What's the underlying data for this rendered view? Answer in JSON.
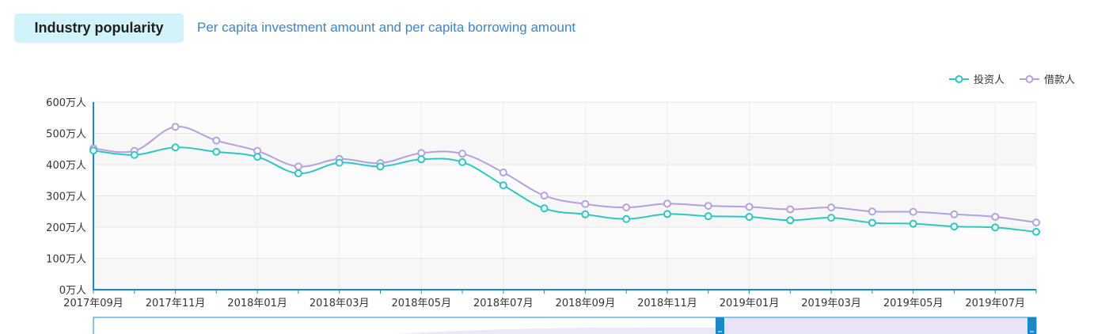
{
  "tabs": {
    "active": "Industry popularity",
    "inactive": "Per capita investment amount and per capita borrowing amount"
  },
  "colors": {
    "investor": "#2fc6c3",
    "borrower": "#b4a1dd",
    "axis": "#1d87c7",
    "tab_active_bg": "#d3f3fb",
    "tab_link": "#3f85c6"
  },
  "chart_data": {
    "type": "line",
    "x": [
      "2017年09月",
      "2017年10月",
      "2017年11月",
      "2017年12月",
      "2018年01月",
      "2018年02月",
      "2018年03月",
      "2018年04月",
      "2018年05月",
      "2018年06月",
      "2018年07月",
      "2018年08月",
      "2018年09月",
      "2018年10月",
      "2018年11月",
      "2018年12月",
      "2019年01月",
      "2019年02月",
      "2019年03月",
      "2019年04月",
      "2019年05月",
      "2019年06月",
      "2019年07月",
      "2019年08月"
    ],
    "x_tick_labels": [
      "2017年09月",
      "2017年11月",
      "2018年01月",
      "2018年03月",
      "2018年05月",
      "2018年07月",
      "2018年09月",
      "2018年11月",
      "2019年01月",
      "2019年03月",
      "2019年05月",
      "2019年07月"
    ],
    "series": [
      {
        "name": "投资人",
        "values": [
          445,
          431,
          455,
          441,
          425,
          372,
          406,
          394,
          417,
          408,
          334,
          260,
          241,
          226,
          242,
          235,
          233,
          222,
          230,
          214,
          211,
          202,
          199,
          185
        ]
      },
      {
        "name": "借款人",
        "values": [
          452,
          444,
          521,
          477,
          444,
          394,
          418,
          405,
          437,
          435,
          375,
          301,
          274,
          263,
          275,
          268,
          265,
          257,
          263,
          250,
          249,
          241,
          233,
          215
        ]
      }
    ],
    "y_ticks": [
      "0万人",
      "100万人",
      "200万人",
      "300万人",
      "400万人",
      "500万人",
      "600万人"
    ],
    "ylim": [
      0,
      600
    ],
    "grid": true,
    "legend": "top-right"
  }
}
